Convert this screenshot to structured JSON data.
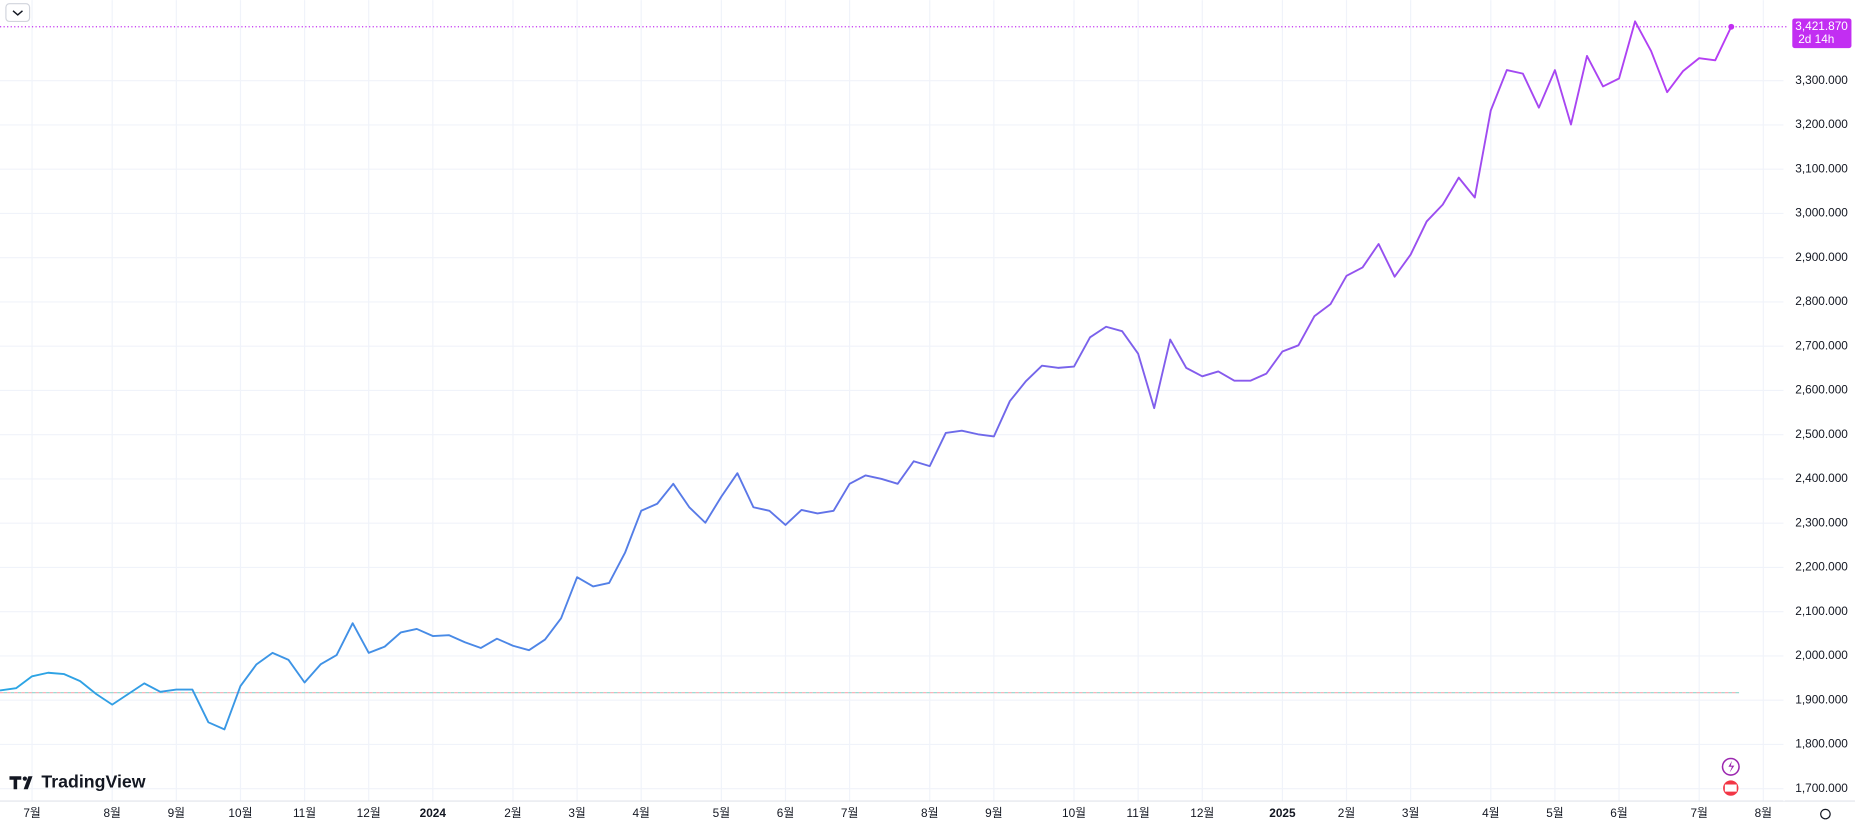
{
  "chart_data": {
    "type": "line",
    "brand": "TradingView",
    "categories": [
      null,
      null,
      "7월",
      null,
      null,
      null,
      null,
      "8월",
      null,
      null,
      null,
      "9월",
      null,
      null,
      null,
      "10월",
      null,
      null,
      null,
      "11월",
      null,
      null,
      null,
      "12월",
      null,
      null,
      null,
      "2024",
      null,
      null,
      null,
      null,
      "2월",
      null,
      null,
      null,
      "3월",
      null,
      null,
      null,
      "4월",
      null,
      null,
      null,
      null,
      "5월",
      null,
      null,
      null,
      "6월",
      null,
      null,
      null,
      "7월",
      null,
      null,
      null,
      null,
      "8월",
      null,
      null,
      null,
      "9월",
      null,
      null,
      null,
      null,
      "10월",
      null,
      null,
      null,
      "11월",
      null,
      null,
      null,
      "12월",
      null,
      null,
      null,
      null,
      "2025",
      null,
      null,
      null,
      "2월",
      null,
      null,
      null,
      "3월",
      null,
      null,
      null,
      null,
      "4월",
      null,
      null,
      null,
      "5월",
      null,
      null,
      null,
      "6월",
      null,
      null,
      null,
      null,
      "7월",
      null,
      null,
      null,
      "8월"
    ],
    "series": [
      {
        "gradient": [
          "#2aa6e4",
          "#6470e8",
          "#b83cf4"
        ],
        "values": [
          1922,
          1927,
          1954,
          1962,
          1959,
          1943,
          1914,
          1890,
          1914,
          1938,
          1919,
          1924,
          1924,
          1850,
          1834,
          1932,
          1981,
          2007,
          1991,
          1940,
          1981,
          2002,
          2074,
          2007,
          2021,
          2053,
          2061,
          2045,
          2047,
          2031,
          2018,
          2039,
          2023,
          2013,
          2037,
          2085,
          2178,
          2157,
          2165,
          2234,
          2328,
          2344,
          2389,
          2336,
          2301,
          2360,
          2413,
          2336,
          2328,
          2296,
          2330,
          2322,
          2328,
          2389,
          2408,
          2400,
          2389,
          2440,
          2429,
          2504,
          2509,
          2501,
          2496,
          2576,
          2621,
          2656,
          2651,
          2654,
          2720,
          2744,
          2734,
          2683,
          2560,
          2715,
          2651,
          2632,
          2643,
          2622,
          2622,
          2638,
          2688,
          2702,
          2768,
          2795,
          2859,
          2878,
          2931,
          2857,
          2907,
          2982,
          3020,
          3081,
          3036,
          3233,
          3324,
          3316,
          3239,
          3324,
          3201,
          3356,
          3287,
          3305,
          3434,
          3367,
          3274,
          3322,
          3351,
          3346,
          3421.87,
          null,
          null
        ]
      }
    ],
    "baseline": 1917,
    "price_marker": {
      "value": 3421.87,
      "label": "3,421.870",
      "countdown": "2d 14h",
      "color": "#c22ef2"
    },
    "ylim": [
      1672,
      3482
    ],
    "yticks": [
      {
        "value": 1700,
        "label": "1,700.000"
      },
      {
        "value": 1800,
        "label": "1,800.000"
      },
      {
        "value": 1900,
        "label": "1,900.000"
      },
      {
        "value": 2000,
        "label": "2,000.000"
      },
      {
        "value": 2100,
        "label": "2,100.000"
      },
      {
        "value": 2200,
        "label": "2,200.000"
      },
      {
        "value": 2300,
        "label": "2,300.000"
      },
      {
        "value": 2400,
        "label": "2,400.000"
      },
      {
        "value": 2500,
        "label": "2,500.000"
      },
      {
        "value": 2600,
        "label": "2,600.000"
      },
      {
        "value": 2700,
        "label": "2,700.000"
      },
      {
        "value": 2800,
        "label": "2,800.000"
      },
      {
        "value": 2900,
        "label": "2,900.000"
      },
      {
        "value": 3000,
        "label": "3,000.000"
      },
      {
        "value": 3100,
        "label": "3,100.000"
      },
      {
        "value": 3200,
        "label": "3,200.000"
      },
      {
        "value": 3300,
        "label": "3,300.000"
      }
    ],
    "grid": true
  }
}
